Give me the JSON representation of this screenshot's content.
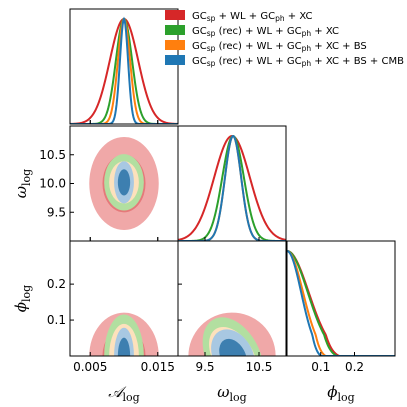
{
  "chart_data": {
    "type": "corner",
    "grid": false,
    "legend_position": "top-right",
    "parameters": [
      {
        "key": "A",
        "label": "𝒜",
        "label_sub": "log",
        "range": [
          0.002,
          0.018
        ],
        "ticks": [
          0.005,
          0.015
        ],
        "tick_labels": [
          "0.005",
          "0.015"
        ]
      },
      {
        "key": "w",
        "label": "ω",
        "label_sub": "log",
        "range": [
          9.0,
          11.0
        ],
        "ticks": [
          9.5,
          10.5
        ],
        "tick_labels": [
          "9.5",
          "10.5"
        ],
        "y_ticks": [
          9.5,
          10.0,
          10.5
        ],
        "y_tick_labels": [
          "9.5",
          "10.0",
          "10.5"
        ]
      },
      {
        "key": "p",
        "label": "ϕ",
        "label_sub": "log",
        "range": [
          0.0,
          0.32
        ],
        "ticks": [
          0.1,
          0.2
        ],
        "tick_labels": [
          "0.1",
          "0.2"
        ],
        "y_ticks": [
          0.1,
          0.2
        ],
        "y_tick_labels": [
          "0.1",
          "0.2"
        ]
      }
    ],
    "series": [
      {
        "name": "GC_sp + WL + GC_ph + XC",
        "legend": [
          {
            "t": "GC"
          },
          {
            "t": "sp",
            "sub": true
          },
          {
            "t": " + WL + GC"
          },
          {
            "t": "ph",
            "sub": true
          },
          {
            "t": " + XC"
          }
        ],
        "color": "#d62728",
        "fill_inner": "#e5797a",
        "fill_outer": "#f0a8a8",
        "A": {
          "mean": 0.01,
          "sd": 0.0021
        },
        "w": {
          "mean": 10.0,
          "sd": 0.33
        },
        "p": {
          "max": 0.115
        },
        "corr_wp": -0.25
      },
      {
        "name": "GC_sp (rec) + WL + GC_ph + XC",
        "legend": [
          {
            "t": "GC"
          },
          {
            "t": "sp",
            "sub": true
          },
          {
            "t": " (rec) + WL + GC"
          },
          {
            "t": "ph",
            "sub": true
          },
          {
            "t": " + XC"
          }
        ],
        "color": "#2ca02c",
        "fill_inner": "#4c9a3c",
        "fill_outer": "#b2dfa0",
        "A": {
          "mean": 0.01,
          "sd": 0.0012
        },
        "w": {
          "mean": 10.02,
          "sd": 0.2
        },
        "p": {
          "max": 0.11
        },
        "corr_wp": -0.3
      },
      {
        "name": "GC_sp (rec) + WL + GC_ph + XC + BS",
        "legend": [
          {
            "t": "GC"
          },
          {
            "t": "sp",
            "sub": true
          },
          {
            "t": " (rec) + WL + GC"
          },
          {
            "t": "ph",
            "sub": true
          },
          {
            "t": " + XC + BS"
          }
        ],
        "color": "#ff7f0e",
        "fill_inner": "#f5b86a",
        "fill_outer": "#fde1bc",
        "A": {
          "mean": 0.01,
          "sd": 0.0009
        },
        "w": {
          "mean": 10.02,
          "sd": 0.15
        },
        "p": {
          "max": 0.085
        },
        "corr_wp": -0.35
      },
      {
        "name": "GC_sp (rec) + WL + GC_ph + XC + BS + CMB",
        "legend": [
          {
            "t": "GC"
          },
          {
            "t": "sp",
            "sub": true
          },
          {
            "t": " (rec) + WL + GC"
          },
          {
            "t": "ph",
            "sub": true
          },
          {
            "t": " + XC + BS + CMB"
          }
        ],
        "color": "#1f77b4",
        "fill_inner": "#3d7fb0",
        "fill_outer": "#a8c8e2",
        "A": {
          "mean": 0.01,
          "sd": 0.0006
        },
        "w": {
          "mean": 10.02,
          "sd": 0.15
        },
        "p": {
          "max": 0.075
        },
        "corr_wp": -0.3
      }
    ]
  }
}
